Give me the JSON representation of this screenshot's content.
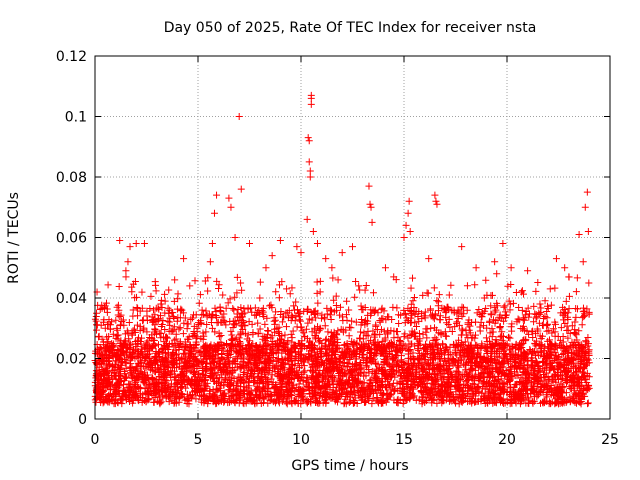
{
  "chart_data": {
    "type": "scatter",
    "title": "Day 050 of 2025, Rate Of TEC Index for receiver nsta",
    "xlabel": "GPS time / hours",
    "ylabel": "ROTI / TECUs",
    "xlim": [
      0,
      25
    ],
    "ylim": [
      0,
      0.12
    ],
    "xticks": [
      0,
      5,
      10,
      15,
      20,
      25
    ],
    "xtick_labels": [
      "0",
      "5",
      "10",
      "15",
      "20",
      "25"
    ],
    "yticks": [
      0,
      0.02,
      0.04,
      0.06,
      0.08,
      0.1,
      0.12
    ],
    "ytick_labels": [
      "0",
      "0.02",
      "0.04",
      "0.06",
      "0.08",
      "0.1",
      "0.12"
    ],
    "grid": true,
    "marker": "+",
    "marker_color": "#ff0000",
    "x_data_range": [
      0,
      24
    ],
    "typical_band": [
      0.005,
      0.025
    ],
    "series": [
      {
        "name": "ROTI",
        "points": [
          [
            1.5,
            0.049
          ],
          [
            1.6,
            0.052
          ],
          [
            1.7,
            0.057
          ],
          [
            2.0,
            0.058
          ],
          [
            1.2,
            0.059
          ],
          [
            2.4,
            0.058
          ],
          [
            3.2,
            0.038
          ],
          [
            4.3,
            0.053
          ],
          [
            4.6,
            0.044
          ],
          [
            5.6,
            0.052
          ],
          [
            5.7,
            0.058
          ],
          [
            5.8,
            0.068
          ],
          [
            5.9,
            0.074
          ],
          [
            6.5,
            0.073
          ],
          [
            6.6,
            0.07
          ],
          [
            6.8,
            0.06
          ],
          [
            7.0,
            0.1
          ],
          [
            7.1,
            0.076
          ],
          [
            7.5,
            0.058
          ],
          [
            8.3,
            0.05
          ],
          [
            8.6,
            0.054
          ],
          [
            9.0,
            0.059
          ],
          [
            9.8,
            0.057
          ],
          [
            10.0,
            0.055
          ],
          [
            10.3,
            0.066
          ],
          [
            10.35,
            0.093
          ],
          [
            10.4,
            0.092
          ],
          [
            10.4,
            0.085
          ],
          [
            10.45,
            0.082
          ],
          [
            10.45,
            0.08
          ],
          [
            10.5,
            0.104
          ],
          [
            10.5,
            0.106
          ],
          [
            10.5,
            0.107
          ],
          [
            10.6,
            0.062
          ],
          [
            10.8,
            0.058
          ],
          [
            11.2,
            0.053
          ],
          [
            11.5,
            0.05
          ],
          [
            12.0,
            0.055
          ],
          [
            12.5,
            0.057
          ],
          [
            13.3,
            0.077
          ],
          [
            13.35,
            0.071
          ],
          [
            13.4,
            0.07
          ],
          [
            13.45,
            0.065
          ],
          [
            14.1,
            0.05
          ],
          [
            15.0,
            0.06
          ],
          [
            15.1,
            0.064
          ],
          [
            15.2,
            0.068
          ],
          [
            15.25,
            0.072
          ],
          [
            15.3,
            0.062
          ],
          [
            16.2,
            0.053
          ],
          [
            16.5,
            0.074
          ],
          [
            16.55,
            0.072
          ],
          [
            16.6,
            0.071
          ],
          [
            17.8,
            0.057
          ],
          [
            18.5,
            0.05
          ],
          [
            19.4,
            0.052
          ],
          [
            19.5,
            0.048
          ],
          [
            19.8,
            0.058
          ],
          [
            20.2,
            0.05
          ],
          [
            21.0,
            0.049
          ],
          [
            22.4,
            0.053
          ],
          [
            22.8,
            0.05
          ],
          [
            23.5,
            0.061
          ],
          [
            23.8,
            0.07
          ],
          [
            23.9,
            0.075
          ],
          [
            23.95,
            0.062
          ],
          [
            23.7,
            0.052
          ],
          [
            23.0,
            0.047
          ],
          [
            0.1,
            0.042
          ],
          [
            0.3,
            0.031
          ],
          [
            0.5,
            0.03
          ],
          [
            2.8,
            0.032
          ],
          [
            3.6,
            0.029
          ],
          [
            8.0,
            0.04
          ],
          [
            9.3,
            0.043
          ],
          [
            11.8,
            0.046
          ],
          [
            12.8,
            0.044
          ],
          [
            14.5,
            0.047
          ],
          [
            17.2,
            0.041
          ],
          [
            18.9,
            0.04
          ],
          [
            20.7,
            0.042
          ],
          [
            21.6,
            0.038
          ],
          [
            22.1,
            0.043
          ],
          [
            5.2,
            0.036
          ],
          [
            6.2,
            0.041
          ]
        ]
      }
    ]
  }
}
